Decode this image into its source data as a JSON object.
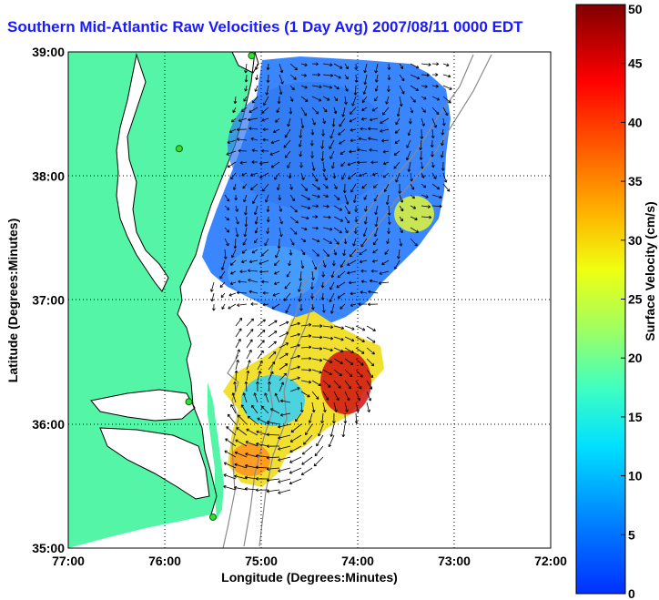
{
  "title": "Southern Mid-Atlantic Raw Velocities (1 Day Avg) 2007/08/11 0000 EDT",
  "map": {
    "xlabel": "Longitude (Degrees:Minutes)",
    "ylabel": "Latitude (Degrees:Minutes)",
    "x_ticks": [
      "77:00",
      "76:00",
      "75:00",
      "74:00",
      "73:00",
      "72:00"
    ],
    "y_ticks": [
      "39:00",
      "38:00",
      "37:00",
      "36:00",
      "35:00"
    ],
    "lon_range": [
      -77,
      -72
    ],
    "lat_range": [
      35,
      39
    ],
    "grid": "dotted",
    "land_color": "#55f5a8",
    "stations": [
      {
        "lon": -75.1,
        "lat": 38.97
      },
      {
        "lon": -75.85,
        "lat": 38.22
      },
      {
        "lon": -75.75,
        "lat": 36.18
      },
      {
        "lon": -75.5,
        "lat": 35.25
      }
    ]
  },
  "colorbar": {
    "label": "Surface Velocity (cm/s)",
    "ticks": [
      "0",
      "5",
      "10",
      "15",
      "20",
      "25",
      "30",
      "35",
      "40",
      "45",
      "50"
    ],
    "min": 0,
    "max": 50
  }
}
